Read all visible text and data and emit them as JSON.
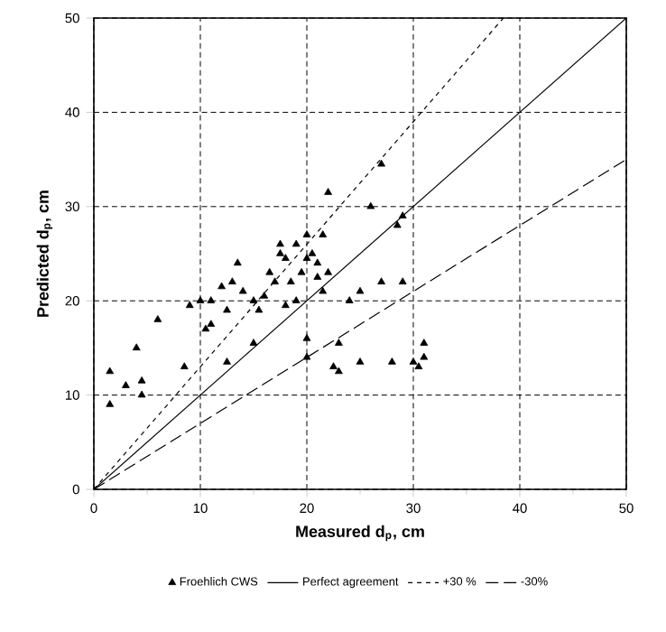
{
  "chart_data": {
    "type": "scatter",
    "xlabel": "Measured d$_{p}$, cm",
    "ylabel": "Predicted d$_{p}$, cm",
    "xlim": [
      0,
      50
    ],
    "ylim": [
      0,
      50
    ],
    "xticks": [
      0,
      10,
      20,
      30,
      40,
      50
    ],
    "yticks": [
      0,
      10,
      20,
      30,
      40,
      50
    ],
    "grid": true,
    "legend": "bottom",
    "series": [
      {
        "name": "Froehlich CWS",
        "marker": "triangle",
        "color": "#000000",
        "x": [
          1.5,
          1.5,
          3,
          4,
          4.5,
          4.5,
          6,
          8.5,
          9,
          10,
          10.5,
          11,
          11,
          12,
          12.5,
          12.5,
          13,
          13.5,
          14,
          15,
          15,
          15.5,
          16,
          16.5,
          17,
          17.5,
          17.5,
          18,
          18,
          18.5,
          19,
          19,
          19.5,
          20,
          20,
          20,
          20,
          20.5,
          21,
          21,
          21.5,
          21.5,
          22,
          22,
          22.5,
          23,
          23,
          24,
          25,
          25,
          26,
          27,
          27,
          28,
          28.5,
          29,
          29,
          30,
          30.5,
          31,
          31
        ],
        "values": [
          9,
          12.5,
          11,
          15,
          10,
          11.5,
          18,
          13,
          19.5,
          20,
          17,
          17.5,
          20,
          21.5,
          19,
          13.5,
          22,
          24,
          21,
          15.5,
          20,
          19,
          20.5,
          23,
          22,
          26,
          25,
          24.5,
          19.5,
          22,
          26,
          20,
          23,
          27,
          24.5,
          14,
          16,
          25,
          24,
          22.5,
          27,
          21,
          31.5,
          23,
          13,
          15.5,
          12.5,
          20,
          13.5,
          21,
          30,
          34.5,
          22,
          13.5,
          28,
          29,
          22,
          13.5,
          13,
          14,
          15.5
        ]
      },
      {
        "name": "Perfect agreement",
        "type": "line",
        "line_style": "solid",
        "color": "#000000",
        "x": [
          0,
          50
        ],
        "values": [
          0,
          50
        ]
      },
      {
        "name": "+30 %",
        "type": "line",
        "line_style": "dotted",
        "color": "#000000",
        "x": [
          0,
          38.46
        ],
        "values": [
          0,
          50
        ]
      },
      {
        "name": "-30%",
        "type": "line",
        "line_style": "dashed",
        "color": "#000000",
        "x": [
          0,
          50
        ],
        "values": [
          0,
          35
        ]
      }
    ]
  }
}
